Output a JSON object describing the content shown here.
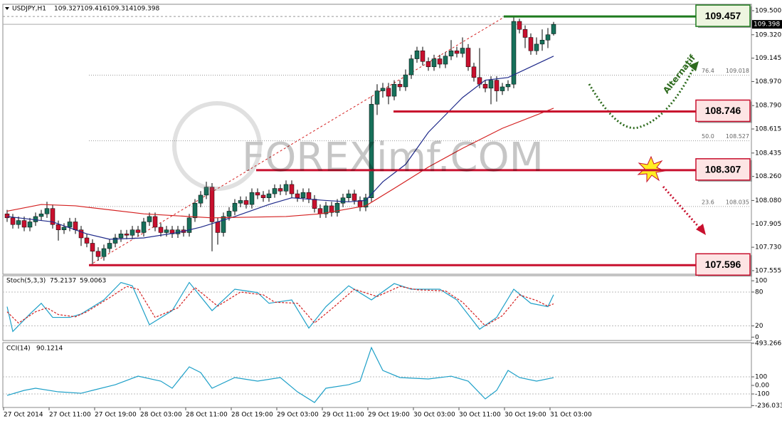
{
  "chart_data": [
    {
      "type": "candlestick",
      "title": "USDJPY,H1",
      "open": [
        107.98,
        107.95,
        107.9,
        107.93,
        107.88,
        107.92,
        107.96,
        107.98,
        108.02,
        107.9,
        107.86,
        107.88,
        107.92,
        107.86,
        107.8,
        107.76,
        107.7,
        107.66,
        107.72,
        107.76,
        107.8,
        107.83,
        107.82,
        107.86,
        107.84,
        107.92,
        107.96,
        107.88,
        107.84,
        107.86,
        107.83,
        107.86,
        107.84,
        107.95,
        108.06,
        108.12,
        108.18,
        107.92,
        107.84,
        107.96,
        108.0,
        108.06,
        108.08,
        108.05,
        108.14,
        108.12,
        108.1,
        108.13,
        108.17,
        108.15,
        108.2,
        108.13,
        108.1,
        108.14,
        108.09,
        108.02,
        107.98,
        108.04,
        107.99,
        108.06,
        108.1,
        108.13,
        108.08,
        108.03,
        108.1,
        108.8,
        108.9,
        108.92,
        108.86,
        108.95,
        108.93,
        109.02,
        109.14,
        109.2,
        109.12,
        109.08,
        109.14,
        109.1,
        109.16,
        109.2,
        109.18,
        109.22,
        109.08,
        109.0,
        108.95,
        108.92,
        108.98,
        108.9,
        108.93,
        108.95,
        109.42,
        109.36,
        109.3,
        109.2,
        109.25,
        109.28,
        109.327
      ],
      "high": [
        108.01,
        107.98,
        107.96,
        107.96,
        107.95,
        107.99,
        108.01,
        108.07,
        108.05,
        107.93,
        107.91,
        107.95,
        107.95,
        107.89,
        107.83,
        107.79,
        107.73,
        107.75,
        107.79,
        107.83,
        107.86,
        107.86,
        107.89,
        107.89,
        107.95,
        107.99,
        107.99,
        107.91,
        107.89,
        107.89,
        107.89,
        107.89,
        107.98,
        108.09,
        108.15,
        108.22,
        108.21,
        107.95,
        107.99,
        108.03,
        108.09,
        108.11,
        108.11,
        108.17,
        108.17,
        108.15,
        108.16,
        108.2,
        108.2,
        108.23,
        108.23,
        108.16,
        108.17,
        108.17,
        108.12,
        108.05,
        108.07,
        108.07,
        108.09,
        108.13,
        108.16,
        108.16,
        108.11,
        108.13,
        108.86,
        108.95,
        108.96,
        108.96,
        108.98,
        108.98,
        109.06,
        109.17,
        109.23,
        109.23,
        109.15,
        109.17,
        109.17,
        109.19,
        109.28,
        109.23,
        109.3,
        109.25,
        109.11,
        109.22,
        108.98,
        109.01,
        109.01,
        108.96,
        108.98,
        109.457,
        109.44,
        109.39,
        109.33,
        109.3,
        109.36,
        109.37,
        109.416
      ],
      "low": [
        107.92,
        107.87,
        107.87,
        107.85,
        107.85,
        107.89,
        107.93,
        107.95,
        107.87,
        107.78,
        107.83,
        107.85,
        107.83,
        107.74,
        107.73,
        107.596,
        107.63,
        107.63,
        107.69,
        107.73,
        107.77,
        107.79,
        107.79,
        107.81,
        107.81,
        107.89,
        107.85,
        107.81,
        107.81,
        107.8,
        107.8,
        107.81,
        107.81,
        107.92,
        108.03,
        108.09,
        107.7,
        107.75,
        107.81,
        107.93,
        107.97,
        108.03,
        108.02,
        108.02,
        108.09,
        108.07,
        108.07,
        108.1,
        108.12,
        108.12,
        108.1,
        108.07,
        108.07,
        108.06,
        107.99,
        107.95,
        107.95,
        107.96,
        107.96,
        108.03,
        108.07,
        108.05,
        108.0,
        108.0,
        108.07,
        108.72,
        108.85,
        108.8,
        108.83,
        108.9,
        108.9,
        108.99,
        109.11,
        109.09,
        109.05,
        109.05,
        109.07,
        109.07,
        109.13,
        109.15,
        109.15,
        109.05,
        108.97,
        108.92,
        108.89,
        108.8,
        108.82,
        108.87,
        108.9,
        108.92,
        109.33,
        109.22,
        109.17,
        109.17,
        109.2,
        109.22,
        109.314
      ],
      "close": [
        107.95,
        107.9,
        107.93,
        107.88,
        107.92,
        107.96,
        107.98,
        108.02,
        107.9,
        107.86,
        107.88,
        107.92,
        107.86,
        107.8,
        107.76,
        107.7,
        107.66,
        107.72,
        107.76,
        107.8,
        107.83,
        107.82,
        107.86,
        107.84,
        107.92,
        107.96,
        107.88,
        107.84,
        107.86,
        107.83,
        107.86,
        107.84,
        107.95,
        108.06,
        108.12,
        108.18,
        107.92,
        107.84,
        107.96,
        108.0,
        108.06,
        108.08,
        108.05,
        108.14,
        108.12,
        108.1,
        108.13,
        108.17,
        108.15,
        108.2,
        108.13,
        108.1,
        108.14,
        108.09,
        108.02,
        107.98,
        108.04,
        107.99,
        108.06,
        108.1,
        108.13,
        108.08,
        108.03,
        108.1,
        108.8,
        108.9,
        108.92,
        108.86,
        108.95,
        108.93,
        109.02,
        109.14,
        109.2,
        109.12,
        109.08,
        109.14,
        109.1,
        109.16,
        109.2,
        109.18,
        109.22,
        109.08,
        109.0,
        108.95,
        108.92,
        108.98,
        108.9,
        108.93,
        108.95,
        109.42,
        109.36,
        109.3,
        109.2,
        109.25,
        109.28,
        109.32,
        109.398
      ],
      "up_color": "#17705a",
      "down_color": "#c8102e",
      "series": [
        {
          "color": "#1f2a8a",
          "x": [
            0,
            8,
            14,
            18,
            24,
            30,
            34,
            40,
            46,
            50,
            56,
            60,
            63,
            66,
            70,
            74,
            80,
            84,
            88,
            92,
            96
          ],
          "values": [
            107.96,
            107.92,
            107.83,
            107.79,
            107.8,
            107.84,
            107.88,
            107.96,
            108.05,
            108.1,
            108.08,
            108.07,
            108.08,
            108.22,
            108.35,
            108.59,
            108.85,
            108.98,
            109.0,
            109.08,
            109.16
          ]
        },
        {
          "color": "#d42020",
          "x": [
            0,
            6,
            12,
            24,
            36,
            49,
            55,
            63,
            68,
            74,
            80,
            87,
            96
          ],
          "values": [
            108.0,
            108.05,
            108.04,
            107.98,
            107.95,
            107.96,
            107.98,
            108.04,
            108.17,
            108.33,
            108.47,
            108.62,
            108.77
          ]
        }
      ],
      "ylim": [
        107.528,
        109.548
      ],
      "yticks": [
        {
          "value": 109.5,
          "label": "109.500"
        },
        {
          "value": 109.32,
          "label": "109.320"
        },
        {
          "value": 109.145,
          "label": "109.145"
        },
        {
          "value": 108.97,
          "label": "108.970"
        },
        {
          "value": 108.79,
          "label": "108.790"
        },
        {
          "value": 108.615,
          "label": "108.615"
        },
        {
          "value": 108.435,
          "label": "108.435"
        },
        {
          "value": 108.26,
          "label": "108.260"
        },
        {
          "value": 108.08,
          "label": "108.080"
        },
        {
          "value": 107.905,
          "label": "107.905"
        },
        {
          "value": 107.73,
          "label": "107.730"
        },
        {
          "value": 107.555,
          "label": "107.555"
        }
      ],
      "levels": [
        {
          "value": 109.457,
          "color": "#1e7b1e"
        },
        {
          "value": 108.746,
          "color": "#c8102e"
        },
        {
          "value": 108.307,
          "color": "#c8102e"
        },
        {
          "value": 107.596,
          "color": "#c8102e"
        }
      ],
      "fibs": [
        {
          "label": "76.4",
          "value": 109.018
        },
        {
          "label": "50.0",
          "value": 108.527
        },
        {
          "label": "23.6",
          "value": 108.035
        }
      ],
      "annotation": "Alternatif",
      "watermark": "FOREXimf.COM",
      "time_labels": [
        "27 Oct 2014",
        "27 Oct 11:00",
        "27 Oct 19:00",
        "28 Oct 03:00",
        "28 Oct 11:00",
        "28 Oct 19:00",
        "29 Oct 03:00",
        "29 Oct 11:00",
        "29 Oct 19:00",
        "30 Oct 03:00",
        "30 Oct 11:00",
        "30 Oct 19:00",
        "31 Oct 03:00"
      ]
    },
    {
      "type": "line",
      "title": "Stoch(5,3,3)",
      "series": [
        {
          "color": "#1ea0c8",
          "x": [
            0,
            1,
            4,
            6,
            8,
            11,
            13,
            17,
            20,
            22,
            25,
            29,
            32,
            36,
            40,
            44,
            46,
            50,
            53,
            56,
            60,
            64,
            68,
            71,
            76,
            79,
            83,
            86,
            89,
            92,
            95,
            96
          ],
          "values": [
            54,
            10,
            41,
            60,
            35,
            35,
            41,
            66,
            97,
            91,
            22,
            47,
            97,
            47,
            85,
            79,
            60,
            66,
            16,
            54,
            91,
            66,
            95,
            85,
            85,
            66,
            14,
            35,
            85,
            60,
            54,
            75.2137
          ]
        },
        {
          "color": "#d42020",
          "dashed": true,
          "x": [
            0,
            2,
            5,
            7,
            9,
            12,
            14,
            18,
            21,
            23,
            26,
            30,
            33,
            37,
            41,
            45,
            47,
            51,
            54,
            57,
            61,
            65,
            69,
            72,
            77,
            80,
            84,
            87,
            90,
            93,
            95,
            96
          ],
          "values": [
            45,
            25,
            45,
            52,
            40,
            36,
            45,
            70,
            90,
            85,
            35,
            52,
            88,
            55,
            80,
            75,
            62,
            60,
            25,
            50,
            85,
            72,
            90,
            84,
            82,
            62,
            20,
            38,
            75,
            65,
            55,
            59.0063
          ]
        }
      ],
      "ylim": [
        -6,
        109
      ],
      "yticks": [
        100,
        80,
        20,
        0
      ]
    },
    {
      "type": "line",
      "title": "CCI(14)",
      "series": [
        {
          "color": "#1ea0c8",
          "x": [
            0,
            3,
            5,
            9,
            13,
            15,
            19,
            23,
            27,
            29,
            32,
            34,
            36,
            40,
            44,
            48,
            51,
            54,
            56,
            60,
            62,
            64,
            66,
            69,
            74,
            78,
            81,
            84,
            86,
            88,
            90,
            93,
            96
          ],
          "values": [
            -117,
            -58,
            -33,
            -75,
            -92,
            -58,
            8,
            108,
            50,
            -33,
            217,
            150,
            -33,
            92,
            50,
            92,
            -75,
            -200,
            -33,
            8,
            50,
            442,
            175,
            92,
            75,
            108,
            50,
            -158,
            -58,
            175,
            92,
            50,
            90.1214
          ]
        }
      ],
      "ylim": [
        -258,
        500
      ],
      "yticks": [
        {
          "value": 493.266,
          "label": "493.266"
        },
        100,
        {
          "value": 0,
          "label": "0.00"
        },
        -100,
        -236.0332
      ]
    }
  ]
}
